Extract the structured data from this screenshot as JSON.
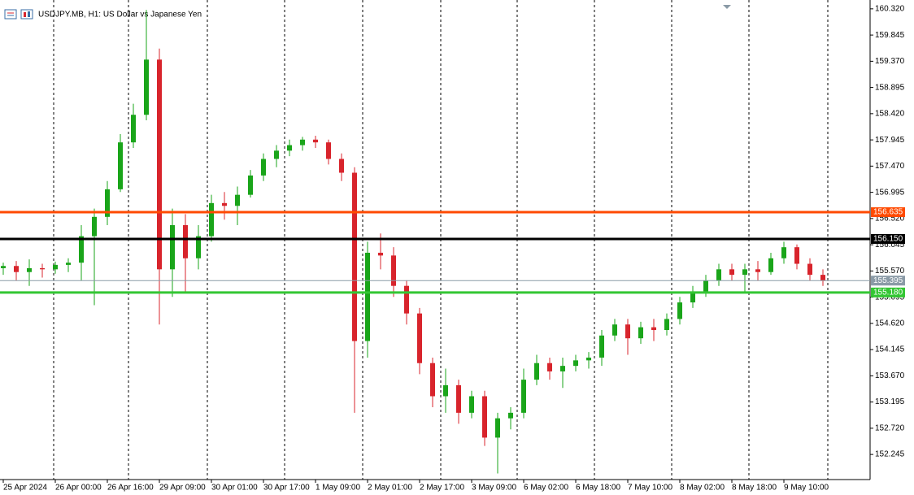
{
  "chart_data": {
    "type": "candlestick",
    "title": "USDJPY.MB, H1:  US Dollar vs Japanese Yen",
    "categories": [
      "25 Apr 2024",
      null,
      null,
      null,
      "26 Apr 00:00",
      null,
      null,
      null,
      "26 Apr 16:00",
      null,
      null,
      null,
      "29 Apr 09:00",
      null,
      null,
      null,
      "30 Apr 01:00",
      null,
      null,
      null,
      "30 Apr 17:00",
      null,
      null,
      null,
      "1 May 09:00",
      null,
      null,
      null,
      "2 May 01:00",
      null,
      null,
      null,
      "2 May 17:00",
      null,
      null,
      null,
      "3 May 09:00",
      null,
      null,
      null,
      "6 May 02:00",
      null,
      null,
      null,
      "6 May 18:00",
      null,
      null,
      null,
      "7 May 10:00",
      null,
      null,
      null,
      "8 May 02:00",
      null,
      null,
      null,
      "8 May 18:00",
      null,
      null,
      null,
      "9 May 10:00",
      null,
      null,
      null
    ],
    "open": [
      155.62,
      155.66,
      155.55,
      155.62,
      155.6,
      155.68,
      155.72,
      156.2,
      156.55,
      157.05,
      157.9,
      158.4,
      159.4,
      155.6,
      156.4,
      155.8,
      156.2,
      156.8,
      156.75,
      156.95,
      157.3,
      157.6,
      157.75,
      157.85,
      157.95,
      157.9,
      157.6,
      157.35,
      154.3,
      155.9,
      155.85,
      155.3,
      154.8,
      153.9,
      153.3,
      153.5,
      153.0,
      153.3,
      152.55,
      152.9,
      153.0,
      153.6,
      153.9,
      153.75,
      153.85,
      153.95,
      154.0,
      154.4,
      154.6,
      154.35,
      154.55,
      154.5,
      154.7,
      155.0,
      155.2,
      155.4,
      155.6,
      155.5,
      155.6,
      155.55,
      155.8,
      156.0,
      155.7,
      155.5
    ],
    "high": [
      155.72,
      155.75,
      155.78,
      155.7,
      155.74,
      155.8,
      156.4,
      156.7,
      157.2,
      158.05,
      158.6,
      160.3,
      159.6,
      156.7,
      156.6,
      156.4,
      156.95,
      157.0,
      157.1,
      157.4,
      157.7,
      157.85,
      157.95,
      158.0,
      158.02,
      157.95,
      157.7,
      157.45,
      156.1,
      156.25,
      156.0,
      155.4,
      154.9,
      154.0,
      153.8,
      153.6,
      153.4,
      153.4,
      153.0,
      153.1,
      153.8,
      154.05,
      154.0,
      154.0,
      154.05,
      154.1,
      154.5,
      154.7,
      154.7,
      154.65,
      154.7,
      154.8,
      155.1,
      155.3,
      155.5,
      155.7,
      155.7,
      155.7,
      155.75,
      155.9,
      156.1,
      156.05,
      155.8,
      155.6
    ],
    "low": [
      155.5,
      155.4,
      155.3,
      155.45,
      155.52,
      155.55,
      155.4,
      154.95,
      156.4,
      157.0,
      157.8,
      158.3,
      154.6,
      155.1,
      155.2,
      155.6,
      156.1,
      156.5,
      156.4,
      156.9,
      157.2,
      157.45,
      157.65,
      157.75,
      157.8,
      157.5,
      157.2,
      153.0,
      154.0,
      155.6,
      155.1,
      154.6,
      153.7,
      153.1,
      153.0,
      152.8,
      152.9,
      152.4,
      151.9,
      152.7,
      152.9,
      153.5,
      153.6,
      153.45,
      153.75,
      153.8,
      153.85,
      154.3,
      154.05,
      154.25,
      154.3,
      154.4,
      154.6,
      154.9,
      155.1,
      155.3,
      155.4,
      155.2,
      155.4,
      155.5,
      155.7,
      155.6,
      155.4,
      155.3
    ],
    "close": [
      155.66,
      155.55,
      155.62,
      155.6,
      155.68,
      155.72,
      156.2,
      156.55,
      157.05,
      157.9,
      158.4,
      159.4,
      155.6,
      156.4,
      155.8,
      156.2,
      156.8,
      156.75,
      156.95,
      157.3,
      157.6,
      157.75,
      157.85,
      157.95,
      157.9,
      157.6,
      157.35,
      154.3,
      155.9,
      155.85,
      155.3,
      154.8,
      153.9,
      153.3,
      153.5,
      153.0,
      153.3,
      152.55,
      152.9,
      153.0,
      153.6,
      153.9,
      153.75,
      153.85,
      153.95,
      154.0,
      154.4,
      154.6,
      154.35,
      154.55,
      154.5,
      154.7,
      155.0,
      155.2,
      155.4,
      155.6,
      155.5,
      155.6,
      155.55,
      155.8,
      156.0,
      155.7,
      155.5,
      155.4
    ],
    "up_color": "#1aa51a",
    "down_color": "#d8242c",
    "ylim": [
      151.79,
      160.48
    ],
    "yticks": [
      {
        "value": 160.32,
        "label": "160.320"
      },
      159.845,
      {
        "value": 159.37,
        "label": "159.370"
      },
      158.895,
      {
        "value": 158.42,
        "label": "158.420"
      },
      157.945,
      {
        "value": 157.47,
        "label": "157.470"
      },
      156.995,
      {
        "value": 156.52,
        "label": "156.520"
      },
      156.045,
      {
        "value": 155.57,
        "label": "155.570"
      },
      155.095,
      {
        "value": 154.62,
        "label": "154.620"
      },
      154.145,
      {
        "value": 153.67,
        "label": "153.670"
      },
      153.195,
      {
        "value": 152.72,
        "label": "152.720"
      },
      152.245
    ],
    "hlines": [
      {
        "value": 156.635,
        "label": "156.635",
        "color": "#ff4a00",
        "width": 3
      },
      {
        "value": 156.15,
        "label": "156.150",
        "color": "#000000",
        "width": 3
      },
      {
        "value": 155.395,
        "label": "155.395",
        "color": "#8a9aa6",
        "width": 1
      },
      {
        "value": 155.18,
        "label": "155.180",
        "color": "#33c633",
        "width": 3
      }
    ]
  }
}
